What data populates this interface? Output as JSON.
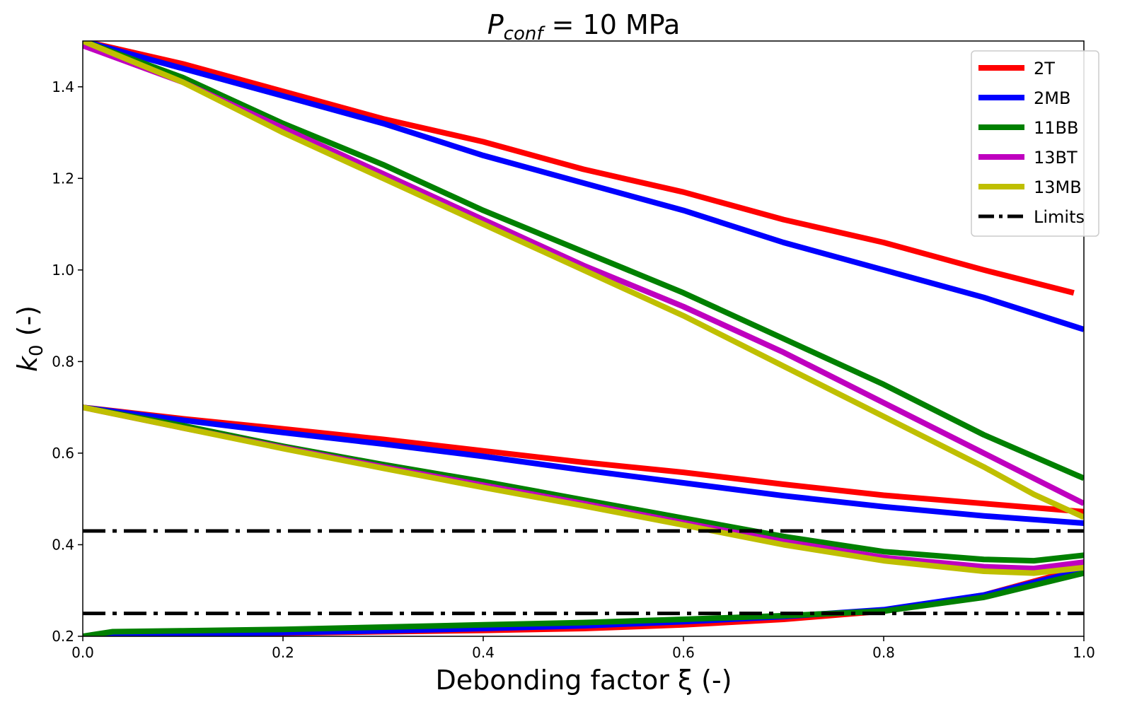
{
  "chart_data": {
    "type": "line",
    "title": {
      "main": "P",
      "subscript": "conf",
      "suffix": " = 10 MPa"
    },
    "xlabel": "Debonding factor ξ (-)",
    "ylabel": {
      "main": "k",
      "subscript": "0",
      "suffix": " (-)"
    },
    "xlim": [
      0.0,
      1.0
    ],
    "ylim": [
      0.2,
      1.5
    ],
    "xticks": [
      0.0,
      0.2,
      0.4,
      0.6,
      0.8,
      1.0
    ],
    "xtick_labels": [
      "0.0",
      "0.2",
      "0.4",
      "0.6",
      "0.8",
      "1.0"
    ],
    "yticks": [
      0.2,
      0.4,
      0.6,
      0.8,
      1.0,
      1.2,
      1.4
    ],
    "ytick_labels": [
      "0.2",
      "0.4",
      "0.6",
      "0.8",
      "1.0",
      "1.2",
      "1.4"
    ],
    "legend_position": "top-right",
    "series": [
      {
        "name": "2T",
        "color": "#ff0000",
        "legend": true,
        "x": [
          0.0,
          0.1,
          0.2,
          0.3,
          0.4,
          0.5,
          0.6,
          0.7,
          0.8,
          0.9,
          0.99
        ],
        "values": [
          1.5,
          1.45,
          1.39,
          1.33,
          1.28,
          1.22,
          1.17,
          1.11,
          1.06,
          1.0,
          0.95
        ]
      },
      {
        "name": "2T",
        "color": "#ff0000",
        "legend": false,
        "x": [
          0.0,
          0.1,
          0.2,
          0.3,
          0.4,
          0.5,
          0.6,
          0.7,
          0.8,
          0.9,
          1.0
        ],
        "values": [
          0.7,
          0.675,
          0.653,
          0.63,
          0.605,
          0.58,
          0.558,
          0.532,
          0.508,
          0.49,
          0.472
        ]
      },
      {
        "name": "2T",
        "color": "#ff0000",
        "legend": false,
        "x": [
          0.0,
          0.1,
          0.2,
          0.3,
          0.4,
          0.5,
          0.6,
          0.7,
          0.8,
          0.9,
          1.0
        ],
        "values": [
          0.2,
          0.205,
          0.207,
          0.21,
          0.213,
          0.217,
          0.225,
          0.237,
          0.255,
          0.29,
          0.35
        ]
      },
      {
        "name": "2MB",
        "color": "#0000ff",
        "legend": true,
        "x": [
          0.0,
          0.1,
          0.2,
          0.3,
          0.4,
          0.5,
          0.6,
          0.7,
          0.8,
          0.9,
          1.0
        ],
        "values": [
          1.5,
          1.44,
          1.38,
          1.32,
          1.25,
          1.19,
          1.13,
          1.06,
          1.0,
          0.94,
          0.87
        ]
      },
      {
        "name": "2MB",
        "color": "#0000ff",
        "legend": false,
        "x": [
          0.0,
          0.1,
          0.2,
          0.3,
          0.4,
          0.5,
          0.6,
          0.7,
          0.8,
          0.9,
          1.0
        ],
        "values": [
          0.7,
          0.672,
          0.645,
          0.62,
          0.593,
          0.563,
          0.535,
          0.507,
          0.483,
          0.463,
          0.447
        ]
      },
      {
        "name": "2MB",
        "color": "#0000ff",
        "legend": false,
        "x": [
          0.0,
          0.1,
          0.2,
          0.3,
          0.4,
          0.5,
          0.6,
          0.7,
          0.8,
          0.9,
          1.0
        ],
        "values": [
          0.2,
          0.205,
          0.208,
          0.212,
          0.217,
          0.223,
          0.232,
          0.243,
          0.258,
          0.29,
          0.345
        ]
      },
      {
        "name": "11BB",
        "color": "#008000",
        "legend": true,
        "x": [
          0.0,
          0.1,
          0.2,
          0.3,
          0.4,
          0.5,
          0.6,
          0.7,
          0.8,
          0.9,
          1.0
        ],
        "values": [
          1.5,
          1.42,
          1.32,
          1.23,
          1.13,
          1.04,
          0.95,
          0.85,
          0.75,
          0.64,
          0.545
        ]
      },
      {
        "name": "11BB",
        "color": "#008000",
        "legend": false,
        "x": [
          0.0,
          0.1,
          0.2,
          0.3,
          0.4,
          0.5,
          0.6,
          0.7,
          0.8,
          0.9,
          0.95,
          1.0
        ],
        "values": [
          0.7,
          0.66,
          0.615,
          0.575,
          0.538,
          0.498,
          0.458,
          0.418,
          0.385,
          0.368,
          0.365,
          0.377
        ]
      },
      {
        "name": "11BB",
        "color": "#008000",
        "legend": false,
        "x": [
          0.0,
          0.03,
          0.1,
          0.2,
          0.3,
          0.4,
          0.5,
          0.6,
          0.7,
          0.8,
          0.9,
          1.0
        ],
        "values": [
          0.2,
          0.21,
          0.212,
          0.215,
          0.22,
          0.225,
          0.23,
          0.237,
          0.245,
          0.255,
          0.285,
          0.338
        ]
      },
      {
        "name": "13BT",
        "color": "#bf00bf",
        "legend": true,
        "x": [
          0.0,
          0.1,
          0.2,
          0.3,
          0.4,
          0.5,
          0.6,
          0.7,
          0.8,
          0.9,
          1.0
        ],
        "values": [
          1.49,
          1.41,
          1.31,
          1.21,
          1.11,
          1.01,
          0.92,
          0.82,
          0.71,
          0.6,
          0.49
        ]
      },
      {
        "name": "13BT",
        "color": "#bf00bf",
        "legend": false,
        "x": [
          0.0,
          0.1,
          0.2,
          0.3,
          0.4,
          0.5,
          0.6,
          0.7,
          0.8,
          0.9,
          0.95,
          1.0
        ],
        "values": [
          0.7,
          0.655,
          0.612,
          0.57,
          0.53,
          0.49,
          0.448,
          0.407,
          0.372,
          0.352,
          0.348,
          0.362
        ]
      },
      {
        "name": "13MB",
        "color": "#bfbf00",
        "legend": true,
        "x": [
          0.0,
          0.1,
          0.2,
          0.3,
          0.4,
          0.5,
          0.6,
          0.7,
          0.8,
          0.9,
          0.95,
          1.0
        ],
        "values": [
          1.5,
          1.41,
          1.3,
          1.2,
          1.1,
          1.0,
          0.9,
          0.79,
          0.68,
          0.57,
          0.51,
          0.46
        ]
      },
      {
        "name": "13MB",
        "color": "#bfbf00",
        "legend": false,
        "x": [
          0.0,
          0.1,
          0.2,
          0.3,
          0.4,
          0.5,
          0.6,
          0.7,
          0.8,
          0.9,
          0.95,
          1.0
        ],
        "values": [
          0.7,
          0.655,
          0.61,
          0.567,
          0.525,
          0.485,
          0.443,
          0.4,
          0.365,
          0.342,
          0.338,
          0.35
        ]
      },
      {
        "name": "Limits",
        "color": "#000000",
        "style": "dashdot",
        "legend": true,
        "x": [
          0.0,
          1.0
        ],
        "values": [
          0.43,
          0.43
        ]
      },
      {
        "name": "Limits",
        "color": "#000000",
        "style": "dashdot",
        "legend": false,
        "x": [
          0.0,
          1.0
        ],
        "values": [
          0.25,
          0.25
        ]
      }
    ]
  }
}
